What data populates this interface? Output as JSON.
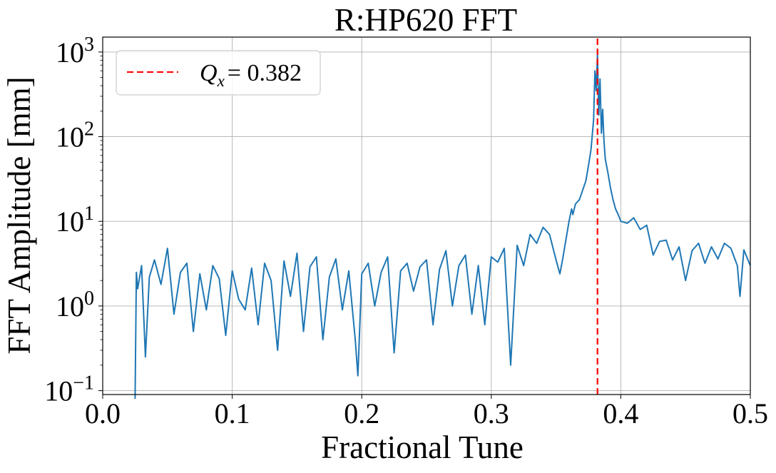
{
  "chart_data": {
    "type": "line",
    "title": "R:HP620 FFT",
    "xlabel": "Fractional Tune",
    "ylabel": "FFT Amplitude [mm]",
    "xlim": [
      0.0,
      0.5
    ],
    "ylim": [
      0.09,
      1500
    ],
    "yscale": "log",
    "grid": true,
    "legend_position": "top-left",
    "x_ticks": [
      {
        "value": 0.0,
        "label": "0.0"
      },
      {
        "value": 0.1,
        "label": "0.1"
      },
      {
        "value": 0.2,
        "label": "0.2"
      },
      {
        "value": 0.3,
        "label": "0.3"
      },
      {
        "value": 0.4,
        "label": "0.4"
      },
      {
        "value": 0.5,
        "label": "0.5"
      }
    ],
    "y_ticks": [
      {
        "value": 0.1,
        "base": "10",
        "exp": "−1"
      },
      {
        "value": 1,
        "base": "10",
        "exp": "0"
      },
      {
        "value": 10,
        "base": "10",
        "exp": "1"
      },
      {
        "value": 100,
        "base": "10",
        "exp": "2"
      },
      {
        "value": 1000,
        "base": "10",
        "exp": "3"
      }
    ],
    "series": [
      {
        "color": "#1f77b4",
        "x": [
          0.025,
          0.026,
          0.027,
          0.03,
          0.033,
          0.036,
          0.04,
          0.045,
          0.05,
          0.055,
          0.06,
          0.065,
          0.07,
          0.075,
          0.08,
          0.085,
          0.09,
          0.095,
          0.1,
          0.105,
          0.11,
          0.115,
          0.12,
          0.125,
          0.13,
          0.135,
          0.14,
          0.145,
          0.15,
          0.155,
          0.16,
          0.165,
          0.17,
          0.175,
          0.18,
          0.185,
          0.19,
          0.195,
          0.197,
          0.2,
          0.205,
          0.21,
          0.215,
          0.22,
          0.225,
          0.23,
          0.235,
          0.24,
          0.245,
          0.25,
          0.255,
          0.26,
          0.265,
          0.27,
          0.275,
          0.28,
          0.285,
          0.29,
          0.295,
          0.3,
          0.305,
          0.31,
          0.315,
          0.32,
          0.325,
          0.33,
          0.335,
          0.34,
          0.345,
          0.35,
          0.353,
          0.355,
          0.36,
          0.362,
          0.363,
          0.365,
          0.368,
          0.37,
          0.373,
          0.375,
          0.377,
          0.379,
          0.38,
          0.381,
          0.382,
          0.383,
          0.384,
          0.385,
          0.386,
          0.387,
          0.388,
          0.39,
          0.392,
          0.394,
          0.396,
          0.398,
          0.4,
          0.405,
          0.41,
          0.415,
          0.42,
          0.425,
          0.43,
          0.435,
          0.44,
          0.445,
          0.45,
          0.455,
          0.46,
          0.465,
          0.47,
          0.475,
          0.48,
          0.485,
          0.49,
          0.492,
          0.495,
          0.5
        ],
        "y": [
          0.08,
          2.5,
          1.6,
          3.0,
          0.25,
          2.2,
          3.5,
          1.8,
          4.8,
          0.8,
          2.5,
          3.2,
          0.5,
          2.4,
          0.9,
          3.0,
          2.1,
          0.45,
          2.6,
          1.2,
          0.9,
          2.8,
          0.6,
          3.2,
          2.0,
          0.3,
          3.4,
          1.3,
          4.2,
          0.5,
          2.9,
          3.8,
          0.4,
          2.2,
          3.6,
          0.9,
          2.6,
          0.4,
          0.15,
          2.4,
          3.2,
          1.0,
          2.5,
          3.8,
          0.28,
          2.6,
          3.2,
          1.5,
          2.9,
          3.5,
          0.6,
          2.7,
          4.5,
          1.0,
          3.0,
          4.0,
          0.8,
          3.0,
          0.6,
          3.8,
          3.3,
          4.8,
          0.2,
          5.2,
          3.0,
          7.0,
          5.5,
          8.5,
          7.0,
          3.5,
          2.4,
          3.5,
          10.0,
          14.0,
          12.0,
          16.0,
          18.0,
          22.0,
          30.0,
          45.0,
          70.0,
          160.0,
          600.0,
          350.0,
          950.0,
          180.0,
          480.0,
          110.0,
          210.0,
          90.0,
          55.0,
          38.0,
          25.0,
          18.0,
          14.0,
          12.0,
          10.0,
          9.5,
          11.0,
          8.0,
          9.0,
          4.0,
          5.8,
          6.0,
          3.5,
          5.0,
          2.0,
          4.5,
          5.5,
          3.2,
          5.0,
          3.6,
          5.5,
          4.8,
          3.0,
          1.3,
          4.6,
          3.0
        ]
      },
      {
        "name": "$Q_x = 0.382$",
        "color": "#ff0000",
        "style": "dashed",
        "x": [
          0.382,
          0.382
        ],
        "y": [
          0.09,
          1500
        ]
      }
    ]
  },
  "legend": {
    "prefix": "Q",
    "subscript": "x",
    "value_text": "= 0.382"
  }
}
